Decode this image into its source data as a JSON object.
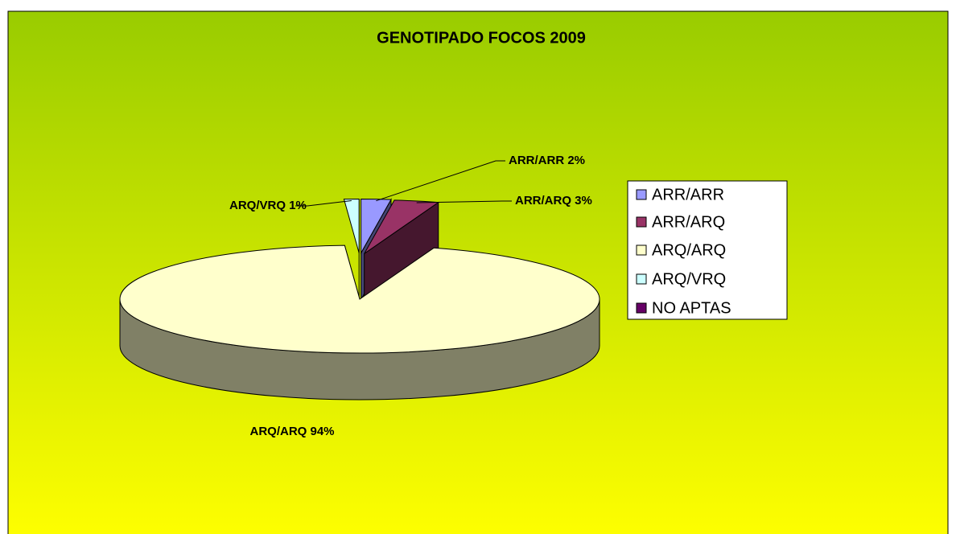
{
  "chart_data": {
    "type": "pie",
    "title": "GENOTIPADO FOCOS 2009",
    "categories": [
      "ARR/ARR",
      "ARR/ARQ",
      "ARQ/ARQ",
      "ARQ/VRQ",
      "NO APTAS"
    ],
    "values": [
      2,
      3,
      94,
      1,
      0
    ],
    "value_labels": [
      "ARR/ARR 2%",
      "ARR/ARQ 3%",
      "ARQ/ARQ 94%",
      "ARQ/VRQ 1%",
      null
    ],
    "colors": [
      "#9999ff",
      "#993366",
      "#ffffcc",
      "#ccffff",
      "#660066"
    ],
    "legend": "right"
  }
}
